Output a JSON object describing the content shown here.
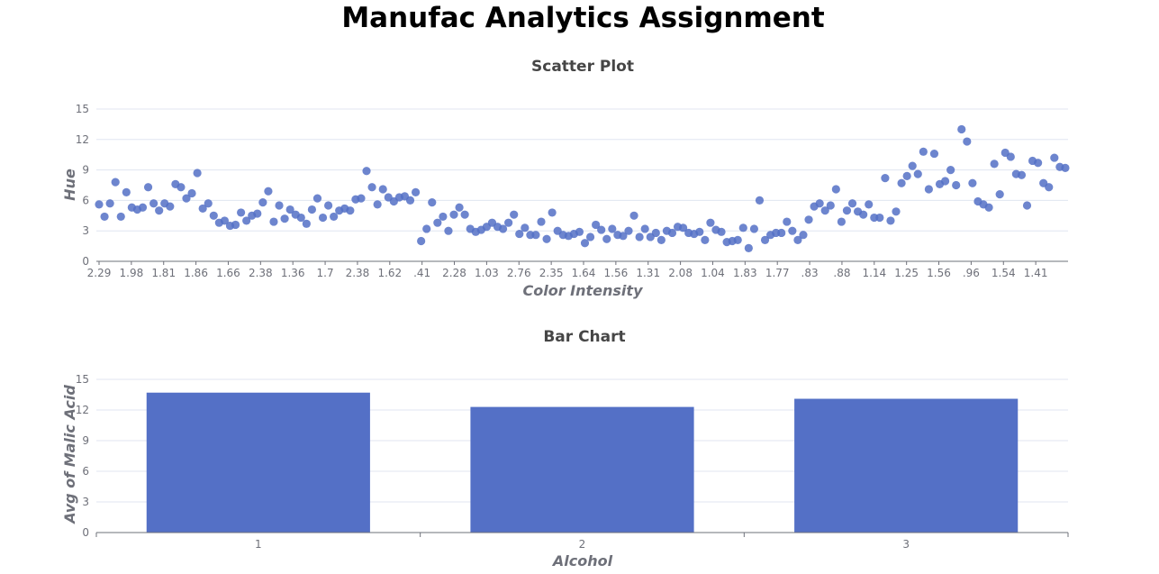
{
  "page": {
    "title": "Manufac Analytics Assignment"
  },
  "colors": {
    "series": "#5470c6",
    "axis": "#6e7079",
    "grid": "#e0e6f1",
    "title": "#464646"
  },
  "chart_data": [
    {
      "type": "scatter",
      "title": "Scatter Plot",
      "xlabel": "Color Intensity",
      "ylabel": "Hue",
      "ylim": [
        0,
        15
      ],
      "y_ticks": [
        "0",
        "3",
        "6",
        "9",
        "12",
        "15"
      ],
      "x_tick_labels": [
        "2.29",
        "1.98",
        "1.81",
        "1.86",
        "1.66",
        "2.38",
        "1.36",
        "1.7",
        "2.38",
        "1.62",
        ".41",
        "2.28",
        "1.03",
        "2.76",
        "2.35",
        "1.64",
        "1.56",
        "1.31",
        "2.08",
        "1.04",
        "1.83",
        "1.77",
        ".83",
        ".88",
        "1.14",
        "1.25",
        "1.56",
        ".96",
        "1.54",
        "1.41"
      ],
      "grid": true,
      "y_values": [
        5.6,
        4.4,
        5.7,
        7.8,
        4.4,
        6.8,
        5.3,
        5.1,
        5.3,
        7.3,
        5.7,
        5.0,
        5.7,
        5.4,
        7.6,
        7.3,
        6.2,
        6.7,
        8.7,
        5.2,
        5.7,
        4.5,
        3.8,
        4.0,
        3.5,
        3.6,
        4.8,
        4.0,
        4.5,
        4.7,
        5.8,
        6.9,
        3.9,
        5.5,
        4.2,
        5.1,
        4.6,
        4.3,
        3.7,
        5.1,
        6.2,
        4.3,
        5.5,
        4.4,
        5.0,
        5.2,
        5.0,
        6.1,
        6.2,
        8.9,
        7.3,
        5.6,
        7.1,
        6.3,
        5.9,
        6.3,
        6.4,
        6.0,
        6.8,
        2.0,
        3.2,
        5.8,
        3.8,
        4.4,
        3.0,
        4.6,
        5.3,
        4.6,
        3.2,
        2.9,
        3.1,
        3.4,
        3.8,
        3.4,
        3.2,
        3.8,
        4.6,
        2.7,
        3.3,
        2.6,
        2.6,
        3.9,
        2.2,
        4.8,
        3.0,
        2.6,
        2.5,
        2.7,
        2.9,
        1.8,
        2.4,
        3.6,
        3.1,
        2.2,
        3.2,
        2.6,
        2.5,
        3.0,
        4.5,
        2.4,
        3.2,
        2.4,
        2.8,
        2.1,
        3.0,
        2.8,
        3.4,
        3.3,
        2.8,
        2.7,
        2.9,
        2.1,
        3.8,
        3.1,
        2.9,
        1.9,
        2.0,
        2.1,
        3.3,
        1.3,
        3.2,
        6.0,
        2.1,
        2.6,
        2.8,
        2.8,
        3.9,
        3.0,
        2.1,
        2.6,
        4.1,
        5.4,
        5.7,
        5.0,
        5.5,
        7.1,
        3.9,
        5.0,
        5.7,
        4.9,
        4.6,
        5.6,
        4.3,
        4.3,
        8.2,
        4.0,
        4.9,
        7.7,
        8.4,
        9.4,
        8.6,
        10.8,
        7.1,
        10.6,
        7.6,
        7.9,
        9.0,
        7.5,
        13.0,
        11.8,
        7.7,
        5.9,
        5.6,
        5.3,
        9.6,
        6.6,
        10.7,
        10.3,
        8.6,
        8.5,
        5.5,
        9.9,
        9.7,
        7.7,
        7.3,
        10.2,
        9.3,
        9.2
      ]
    },
    {
      "type": "bar",
      "title": "Bar Chart",
      "xlabel": "Alcohol",
      "ylabel": "Avg of Malic Acid",
      "categories": [
        "1",
        "2",
        "3"
      ],
      "values": [
        13.7,
        12.3,
        13.1
      ],
      "ylim": [
        0,
        15
      ],
      "y_ticks": [
        "0",
        "3",
        "6",
        "9",
        "12",
        "15"
      ],
      "grid": true
    }
  ]
}
